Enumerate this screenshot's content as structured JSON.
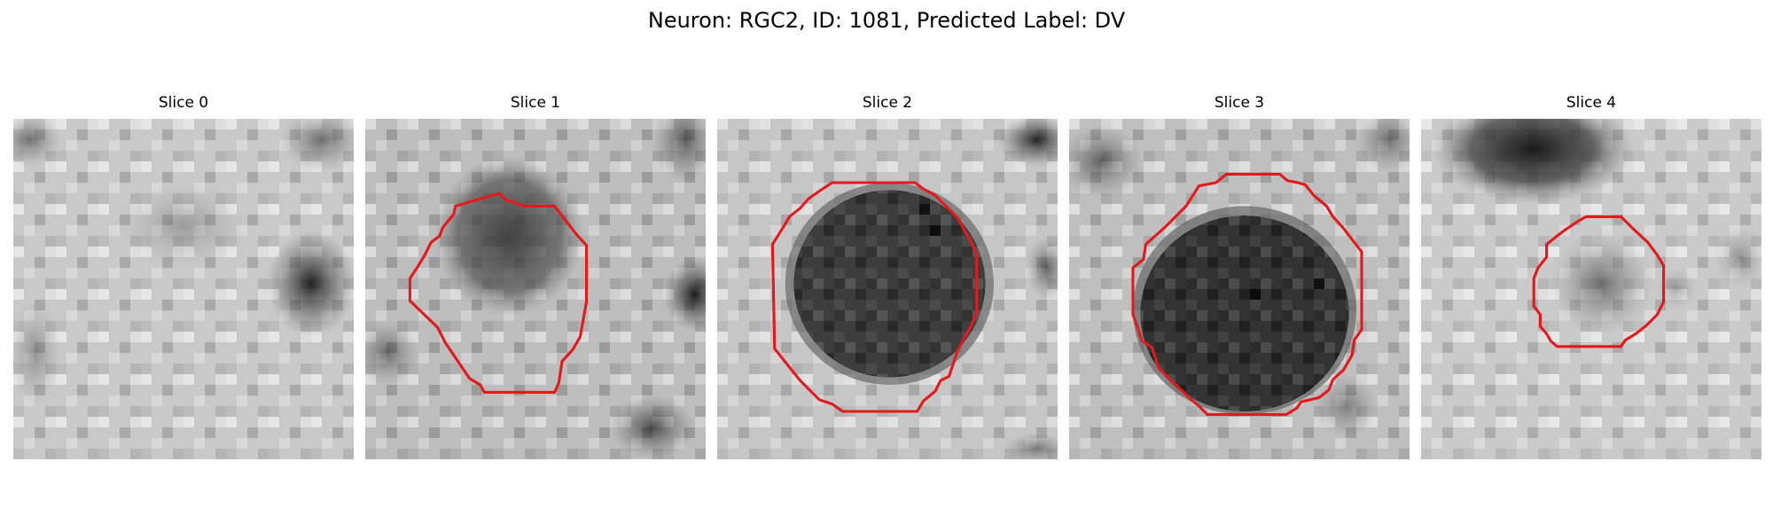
{
  "figure": {
    "title": "Neuron: RGC2, ID: 1081, Predicted Label: DV"
  },
  "panels": [
    {
      "title": "Slice 0",
      "has_contour": false
    },
    {
      "title": "Slice 1",
      "has_contour": true
    },
    {
      "title": "Slice 2",
      "has_contour": true
    },
    {
      "title": "Slice 3",
      "has_contour": true
    },
    {
      "title": "Slice 4",
      "has_contour": true
    }
  ],
  "style": {
    "contour_color": "#e31a1c",
    "colormap": "grayscale"
  }
}
